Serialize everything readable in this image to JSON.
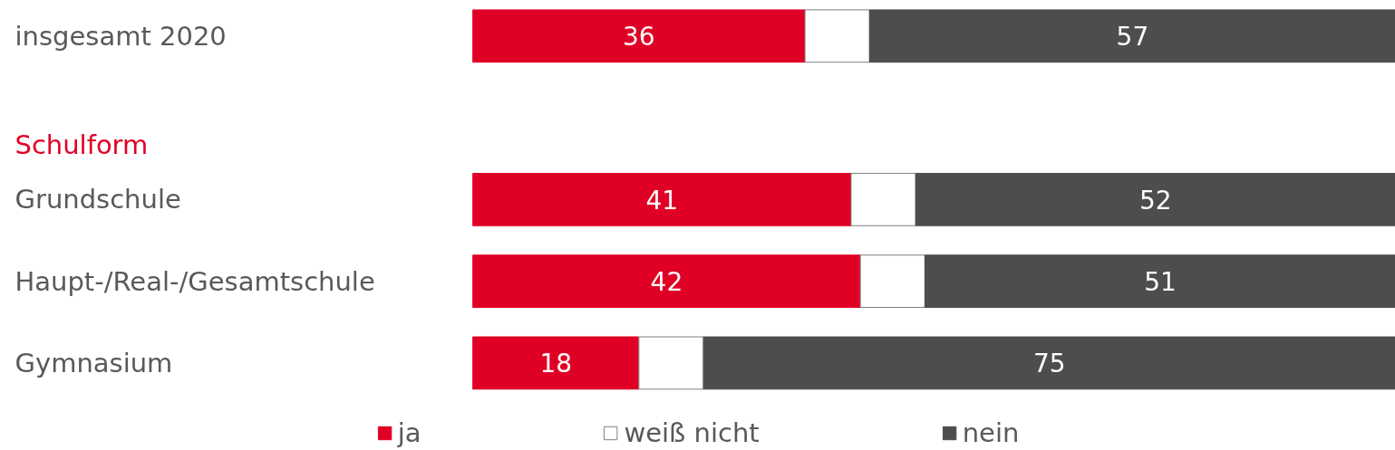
{
  "chart_data": {
    "type": "bar",
    "orientation": "horizontal",
    "stacked": true,
    "categories": [
      "insgesamt 2020",
      null,
      "Grundschule",
      "Haupt-/Real-/Gesamtschule",
      "Gymnasium"
    ],
    "series": [
      {
        "name": "ja",
        "color": "#e00025",
        "values": [
          36,
          null,
          41,
          42,
          18
        ],
        "value_labels": [
          "36",
          null,
          "41",
          "42",
          "18"
        ]
      },
      {
        "name": "weiß nicht",
        "color": "#ffffff",
        "values": [
          7,
          null,
          7,
          7,
          7
        ],
        "value_labels": [
          null,
          null,
          null,
          null,
          null
        ]
      },
      {
        "name": "nein",
        "color": "#4d4d4d",
        "values": [
          57,
          null,
          52,
          51,
          75
        ],
        "value_labels": [
          "57",
          null,
          "52",
          "51",
          "75"
        ]
      }
    ],
    "annotations": [
      "Schulform"
    ],
    "legend": "bottom",
    "grid": false
  }
}
